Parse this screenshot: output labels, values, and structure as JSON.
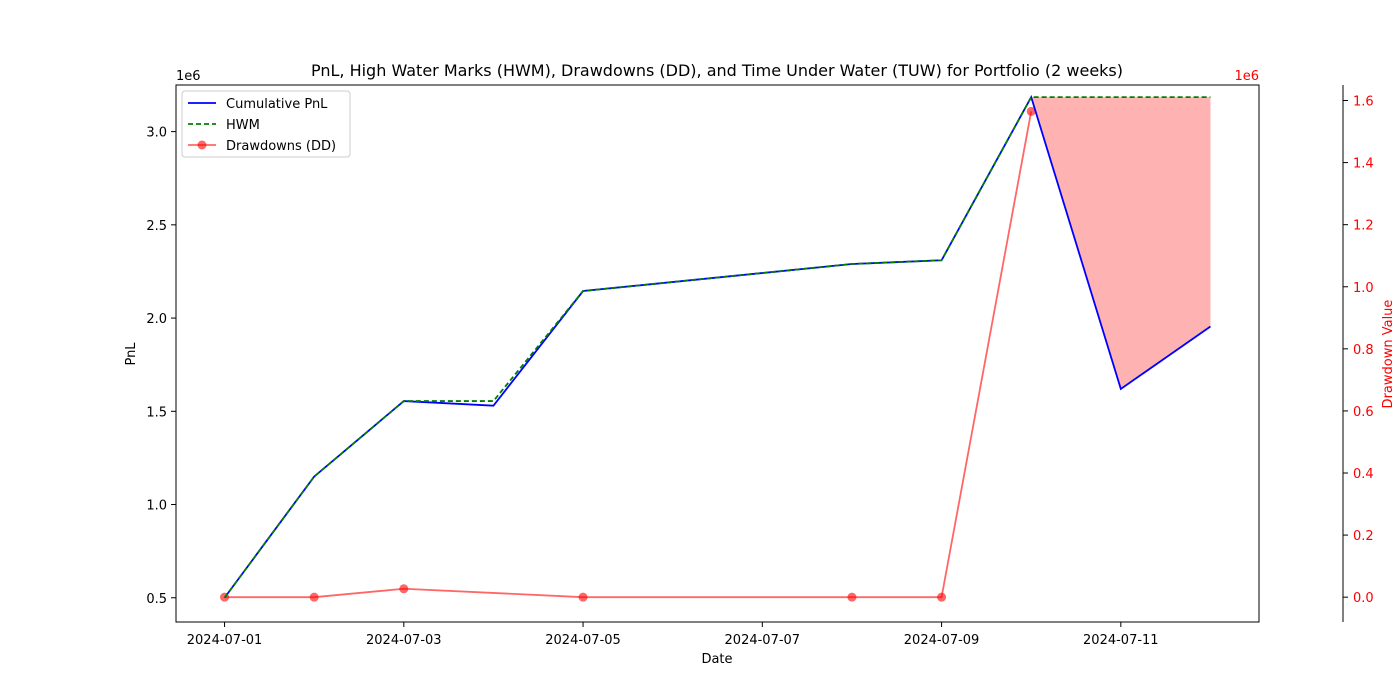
{
  "chart_data": {
    "type": "line",
    "title": "PnL, High Water Marks (HWM), Drawdowns (DD), and Time Under Water (TUW) for Portfolio (2 weeks)",
    "xlabel": "Date",
    "ylabel": "PnL",
    "y2label": "Drawdown Value",
    "y_offset_text": "1e6",
    "y2_offset_text": "1e6",
    "x": [
      "2024-07-01",
      "2024-07-02",
      "2024-07-03",
      "2024-07-04",
      "2024-07-05",
      "2024-07-08",
      "2024-07-09",
      "2024-07-10",
      "2024-07-11",
      "2024-07-12"
    ],
    "x_ticks": [
      "2024-07-01",
      "2024-07-03",
      "2024-07-05",
      "2024-07-07",
      "2024-07-09",
      "2024-07-11"
    ],
    "xlim": [
      "2024-06-30T11:00",
      "2024-07-12T13:00"
    ],
    "y_ticks": [
      "0.5",
      "1.0",
      "1.5",
      "2.0",
      "2.5",
      "3.0"
    ],
    "y_tick_values": [
      0.5,
      1.0,
      1.5,
      2.0,
      2.5,
      3.0
    ],
    "ylim": [
      0.37,
      3.25
    ],
    "y2_ticks": [
      "0.0",
      "0.2",
      "0.4",
      "0.6",
      "0.8",
      "1.0",
      "1.2",
      "1.4",
      "1.6"
    ],
    "y2_tick_values": [
      0.0,
      0.2,
      0.4,
      0.6,
      0.8,
      1.0,
      1.2,
      1.4,
      1.6
    ],
    "y2lim": [
      -0.08,
      1.65
    ],
    "series": [
      {
        "name": "Cumulative PnL",
        "color": "#0000ff",
        "style": "solid",
        "axis": "left",
        "values": [
          0.5,
          1.15,
          1.555,
          1.53,
          2.145,
          2.29,
          2.31,
          3.185,
          1.62,
          1.955
        ]
      },
      {
        "name": "HWM",
        "color": "#008000",
        "style": "dashed",
        "axis": "left",
        "values": [
          0.5,
          1.15,
          1.555,
          1.555,
          2.145,
          2.29,
          2.31,
          3.185,
          3.185,
          3.185
        ]
      },
      {
        "name": "Drawdowns (DD)",
        "color": "#ff0000",
        "style": "solid-marker",
        "axis": "right",
        "x": [
          "2024-07-01",
          "2024-07-02",
          "2024-07-03",
          "2024-07-05",
          "2024-07-08",
          "2024-07-09",
          "2024-07-10"
        ],
        "values": [
          0.0,
          0.0,
          0.027,
          0.0,
          0.0,
          0.0,
          1.565
        ]
      }
    ],
    "shaded_region": {
      "between": [
        "HWM",
        "Cumulative PnL"
      ],
      "x_from": "2024-07-10",
      "x_to": "2024-07-12",
      "color": "#ff0000"
    },
    "legend_position": "top-left",
    "grid": false,
    "colors": {
      "y2_axis": "#ff0000"
    }
  }
}
